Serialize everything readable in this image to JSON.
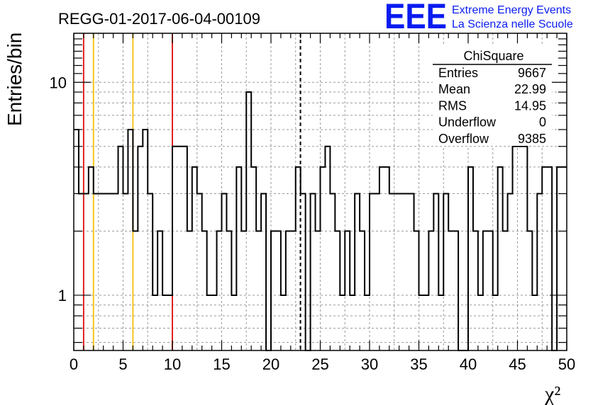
{
  "chart_data": {
    "type": "histogram",
    "title": "REGG-01-2017-06-04-00109",
    "ylabel": "Entries/bin",
    "xlabel": "χ²",
    "xlim": [
      0,
      50
    ],
    "ylim": [
      0.55,
      17
    ],
    "yscale": "log",
    "bin_width": 0.5,
    "grid": true,
    "x_ticks": [
      0,
      5,
      10,
      15,
      20,
      25,
      30,
      35,
      40,
      45,
      50
    ],
    "x_tick_labels": [
      "0",
      "5",
      "10",
      "15",
      "20",
      "25",
      "30",
      "35",
      "40",
      "45",
      "50"
    ],
    "y_ticks": [
      1,
      10
    ],
    "y_tick_labels": [
      "1",
      "10"
    ],
    "values": [
      6,
      3,
      3,
      4,
      3,
      3,
      3,
      3,
      3,
      5,
      3,
      6,
      2,
      5,
      6,
      3,
      1,
      2,
      1,
      1,
      5,
      5,
      5,
      2,
      4,
      3,
      2,
      1,
      1,
      2,
      3,
      2,
      1,
      4,
      2,
      9,
      4,
      2,
      3,
      0,
      2,
      2,
      1,
      2,
      2,
      4,
      3,
      0,
      3,
      2,
      4,
      5,
      3,
      2,
      1,
      2,
      1,
      3,
      2,
      1,
      3,
      3,
      4,
      4,
      3,
      3,
      3,
      3,
      3,
      2,
      1,
      1,
      2,
      3,
      1,
      3,
      2,
      2,
      0,
      0,
      4,
      2,
      1,
      2,
      2,
      1,
      4,
      2,
      3,
      5,
      5,
      5,
      2,
      1,
      3,
      4,
      4,
      0,
      4,
      4
    ],
    "vertical_lines": [
      {
        "x": 1,
        "color": "#e02020",
        "style": "solid"
      },
      {
        "x": 2,
        "color": "#f5c518",
        "style": "solid"
      },
      {
        "x": 6,
        "color": "#f5c518",
        "style": "solid"
      },
      {
        "x": 10,
        "color": "#e02020",
        "style": "solid"
      },
      {
        "x": 22.99,
        "color": "#000000",
        "style": "dashed"
      }
    ]
  },
  "stats_box": {
    "title": "ChiSquare",
    "rows": [
      {
        "label": "Entries",
        "value": "9667"
      },
      {
        "label": "Mean",
        "value": "22.99"
      },
      {
        "label": "RMS",
        "value": "14.95"
      },
      {
        "label": "Underflow",
        "value": "0"
      },
      {
        "label": "Overflow",
        "value": "9385"
      }
    ]
  },
  "logo": {
    "mark": "EEE",
    "line1": "Extreme Energy Events",
    "line2": "La Scienza nelle Scuole",
    "color": "#0a1cf0"
  }
}
